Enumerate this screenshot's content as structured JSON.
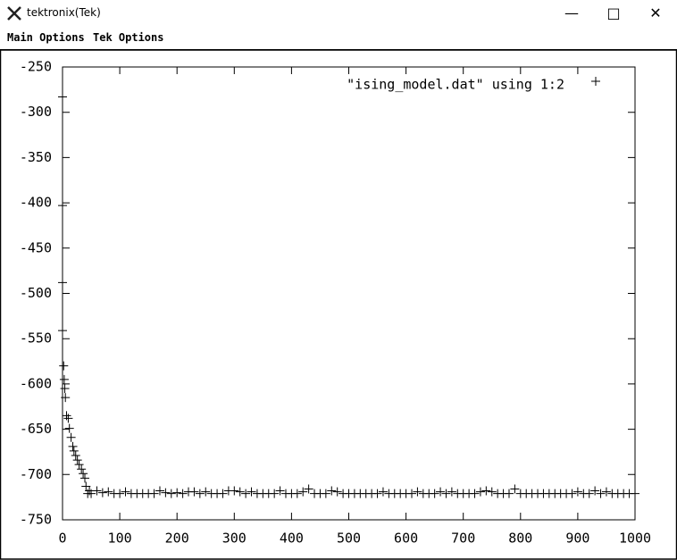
{
  "window": {
    "title": "tektronix(Tek)"
  },
  "menu": {
    "items": [
      "Main Options",
      "Tek Options"
    ]
  },
  "chart_data": {
    "type": "scatter",
    "legend": "top-right",
    "xlim": [
      0,
      1000
    ],
    "ylim": [
      -750,
      -250
    ],
    "xticks": [
      0,
      100,
      200,
      300,
      400,
      500,
      600,
      700,
      800,
      900,
      1000
    ],
    "yticks": [
      -250,
      -300,
      -350,
      -400,
      -450,
      -500,
      -550,
      -600,
      -650,
      -700,
      -750
    ],
    "series": [
      {
        "name": "\"ising_model.dat\" using 1:2",
        "color": "#000000",
        "x": [
          0,
          0,
          0,
          0,
          2,
          3,
          4,
          5,
          7,
          10,
          12,
          15,
          18,
          20,
          23,
          26,
          29,
          33,
          36,
          39,
          41,
          44,
          47,
          50,
          60,
          70,
          80,
          90,
          100,
          110,
          120,
          130,
          140,
          150,
          160,
          170,
          180,
          190,
          200,
          210,
          220,
          230,
          240,
          250,
          260,
          270,
          280,
          290,
          300,
          310,
          320,
          330,
          340,
          350,
          360,
          370,
          380,
          390,
          400,
          410,
          420,
          430,
          440,
          450,
          460,
          470,
          480,
          490,
          500,
          510,
          520,
          530,
          540,
          550,
          560,
          570,
          580,
          590,
          600,
          610,
          620,
          630,
          640,
          650,
          660,
          670,
          680,
          690,
          700,
          710,
          720,
          730,
          740,
          750,
          760,
          770,
          780,
          790,
          800,
          810,
          820,
          830,
          840,
          850,
          860,
          870,
          880,
          890,
          900,
          910,
          920,
          930,
          940,
          950,
          960,
          970,
          980,
          990,
          1000
        ],
        "values": [
          -283,
          -403,
          -488,
          -541,
          -580,
          -595,
          -605,
          -615,
          -635,
          -638,
          -649,
          -659,
          -669,
          -674,
          -679,
          -684,
          -689,
          -694,
          -699,
          -704,
          -713,
          -721,
          -718,
          -721,
          -718,
          -720,
          -719,
          -721,
          -721,
          -719,
          -721,
          -721,
          -721,
          -721,
          -721,
          -718,
          -720,
          -721,
          -720,
          -721,
          -719,
          -719,
          -721,
          -719,
          -721,
          -721,
          -721,
          -718,
          -718,
          -719,
          -721,
          -719,
          -721,
          -721,
          -721,
          -721,
          -718,
          -721,
          -721,
          -721,
          -719,
          -716,
          -721,
          -721,
          -721,
          -718,
          -719,
          -721,
          -721,
          -721,
          -721,
          -721,
          -721,
          -721,
          -719,
          -721,
          -721,
          -721,
          -721,
          -721,
          -719,
          -721,
          -721,
          -721,
          -719,
          -721,
          -719,
          -721,
          -721,
          -721,
          -721,
          -719,
          -718,
          -719,
          -721,
          -721,
          -721,
          -716,
          -721,
          -721,
          -721,
          -721,
          -721,
          -721,
          -721,
          -721,
          -721,
          -721,
          -719,
          -721,
          -721,
          -718,
          -721,
          -719,
          -721,
          -721,
          -721,
          -721,
          -721
        ]
      }
    ]
  }
}
